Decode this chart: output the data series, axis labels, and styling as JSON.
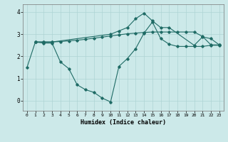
{
  "xlabel": "Humidex (Indice chaleur)",
  "xlim": [
    -0.5,
    23.5
  ],
  "ylim": [
    -0.45,
    4.35
  ],
  "xticks": [
    0,
    1,
    2,
    3,
    4,
    5,
    6,
    7,
    8,
    9,
    10,
    11,
    12,
    13,
    14,
    15,
    16,
    17,
    18,
    19,
    20,
    21,
    22,
    23
  ],
  "yticks": [
    0,
    1,
    2,
    3,
    4
  ],
  "bg_color": "#cce9e9",
  "grid_color": "#aed4d4",
  "line_color": "#1f6b65",
  "curve1_x": [
    0,
    1,
    2,
    3,
    4,
    5,
    6,
    7,
    8,
    9,
    10,
    11,
    12,
    13,
    14,
    15,
    16,
    17,
    18,
    19,
    20,
    21,
    22,
    23
  ],
  "curve1_y": [
    1.5,
    2.65,
    2.6,
    2.6,
    1.75,
    1.45,
    0.72,
    0.5,
    0.38,
    0.12,
    -0.05,
    1.55,
    1.9,
    2.35,
    3.05,
    3.55,
    2.8,
    2.55,
    2.45,
    2.45,
    2.45,
    2.45,
    2.5,
    2.5
  ],
  "curve2_x": [
    1,
    2,
    3,
    4,
    5,
    6,
    7,
    8,
    9,
    10,
    11,
    12,
    13,
    14,
    15,
    16,
    17,
    18,
    19,
    20,
    21,
    22,
    23
  ],
  "curve2_y": [
    2.65,
    2.65,
    2.65,
    2.67,
    2.7,
    2.73,
    2.77,
    2.82,
    2.87,
    2.92,
    2.97,
    3.02,
    3.05,
    3.08,
    3.1,
    3.1,
    3.1,
    3.1,
    3.1,
    3.1,
    2.9,
    2.52,
    2.52
  ],
  "curve3_x": [
    1,
    2,
    3,
    10,
    11,
    12,
    13,
    14,
    15,
    16,
    17,
    20,
    21,
    22,
    23
  ],
  "curve3_y": [
    2.65,
    2.65,
    2.65,
    3.0,
    3.15,
    3.3,
    3.7,
    3.95,
    3.6,
    3.3,
    3.3,
    2.5,
    2.88,
    2.8,
    2.52
  ]
}
